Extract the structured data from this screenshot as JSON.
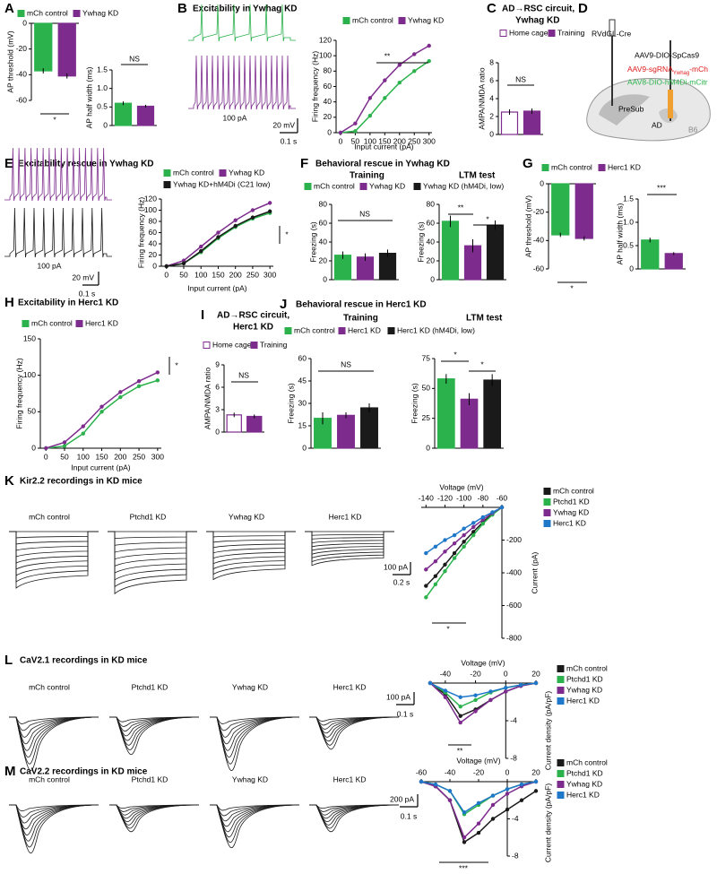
{
  "chart_data": [
    {
      "type": "bar",
      "panel": "A",
      "ylabel": "AP threshold (mV)",
      "series": [
        {
          "name": "mCh control",
          "color": "#2bb24c",
          "values": [
            -37
          ],
          "errors": [
            2
          ]
        },
        {
          "name": "Ywhag KD",
          "color": "#7d2c8e",
          "values": [
            -41
          ],
          "errors": [
            2
          ]
        }
      ],
      "ylim": [
        -60,
        0
      ],
      "yticks": [
        -60,
        -40,
        -20,
        0
      ],
      "annotations": [
        "*"
      ]
    },
    {
      "type": "bar",
      "ylabel": "AP half width (ms)",
      "series": [
        {
          "color": "#2bb24c",
          "values": [
            0.6
          ],
          "errors": [
            0.05
          ]
        },
        {
          "color": "#7d2c8e",
          "values": [
            0.52
          ],
          "errors": [
            0.04
          ]
        }
      ],
      "ylim": [
        0,
        1.5
      ],
      "yticks": [
        0,
        0.5,
        {
          "value": 1,
          "label": "1.0"
        },
        1.5
      ],
      "annotations": [
        "NS"
      ]
    },
    {
      "type": "line",
      "panel": "B",
      "title": "Excitability in Ywhag KD",
      "xlabel": "Input current (pA)",
      "ylabel": "Firing frequency (Hz)",
      "x": [
        0,
        50,
        100,
        150,
        200,
        250,
        300
      ],
      "series": [
        {
          "name": "mCh control",
          "color": "#2bb24c",
          "values": [
            0,
            2,
            22,
            45,
            65,
            80,
            93
          ]
        },
        {
          "name": "Ywhag KD",
          "color": "#7d2c8e",
          "values": [
            0,
            12,
            45,
            68,
            88,
            102,
            113
          ]
        }
      ],
      "xlim": [
        -15,
        310
      ],
      "xticks": [
        0,
        50,
        100,
        150,
        200,
        250,
        300
      ],
      "ylim": [
        0,
        120
      ],
      "yticks": [
        0,
        20,
        40,
        60,
        80,
        100,
        120
      ],
      "annotations": [
        "**"
      ]
    },
    {
      "type": "bar",
      "panel": "C",
      "title": "AD→RSC circuit,",
      "subtitle": "Ywhag KD",
      "ylabel": "AMPA/NMDA ratio",
      "series": [
        {
          "name": "Home cage",
          "color": "#7d2c8e",
          "hollow": true,
          "values": [
            2.5
          ],
          "errors": [
            0.3
          ]
        },
        {
          "name": "Training",
          "color": "#7d2c8e",
          "values": [
            2.6
          ],
          "errors": [
            0.3
          ]
        }
      ],
      "ylim": [
        0,
        8
      ],
      "yticks": [
        0,
        2,
        4,
        6,
        8
      ],
      "annotations": [
        "NS"
      ]
    },
    {
      "type": "line",
      "panel": "E",
      "title": "Excitability rescue in Ywhag KD",
      "xlabel": "Input current (pA)",
      "ylabel": "Firing frequency (Hz)",
      "x": [
        0,
        50,
        100,
        150,
        200,
        250,
        300
      ],
      "series": [
        {
          "name": "mCh control",
          "color": "#2bb24c",
          "values": [
            0,
            5,
            25,
            50,
            70,
            85,
            95
          ]
        },
        {
          "name": "Ywhag KD",
          "color": "#7d2c8e",
          "values": [
            0,
            10,
            35,
            60,
            82,
            100,
            113
          ]
        },
        {
          "name": "Ywhag KD+hM4Di (C21 low)",
          "color": "#1a1a1a",
          "values": [
            0,
            5,
            27,
            52,
            72,
            87,
            98
          ]
        }
      ],
      "xlim": [
        -15,
        310
      ],
      "xticks": [
        0,
        50,
        100,
        150,
        200,
        250,
        300
      ],
      "ylim": [
        0,
        120
      ],
      "yticks": [
        0,
        20,
        40,
        60,
        80,
        100,
        120
      ],
      "annotations": [
        "*"
      ]
    },
    {
      "type": "bar",
      "panel": "F",
      "title": "Behavioral rescue in Ywhag KD",
      "subtitle": "Training",
      "ylabel": "Freezing (s)",
      "series": [
        {
          "name": "mCh control",
          "color": "#2bb24c",
          "values": [
            26
          ],
          "errors": [
            4
          ]
        },
        {
          "name": "Ywhag KD",
          "color": "#7d2c8e",
          "values": [
            24
          ],
          "errors": [
            4
          ]
        },
        {
          "name": "Ywhag KD (hM4Di, low)",
          "color": "#1a1a1a",
          "values": [
            28
          ],
          "errors": [
            4
          ]
        }
      ],
      "ylim": [
        0,
        80
      ],
      "yticks": [
        0,
        20,
        40,
        60,
        80
      ],
      "annotations": [
        "NS"
      ]
    },
    {
      "type": "bar",
      "subtitle": "LTM test",
      "ylabel": "Freezing (s)",
      "series": [
        {
          "color": "#2bb24c",
          "values": [
            62
          ],
          "errors": [
            6
          ]
        },
        {
          "color": "#7d2c8e",
          "values": [
            36
          ],
          "errors": [
            7
          ]
        },
        {
          "color": "#1a1a1a",
          "values": [
            58
          ],
          "errors": [
            5
          ]
        }
      ],
      "ylim": [
        0,
        80
      ],
      "yticks": [
        0,
        20,
        40,
        60,
        80
      ],
      "annotations": [
        "**",
        "*"
      ]
    },
    {
      "type": "bar",
      "panel": "G",
      "ylabel": "AP threshold (mV)",
      "series": [
        {
          "name": "mCh control",
          "color": "#2bb24c",
          "values": [
            -36
          ],
          "errors": [
            1.5
          ]
        },
        {
          "name": "Herc1 KD",
          "color": "#7d2c8e",
          "values": [
            -38.5
          ],
          "errors": [
            1.5
          ]
        }
      ],
      "ylim": [
        -60,
        0
      ],
      "yticks": [
        -60,
        -40,
        -20,
        0
      ],
      "annotations": [
        "*"
      ]
    },
    {
      "type": "bar",
      "ylabel": "AP half width (ms)",
      "series": [
        {
          "color": "#2bb24c",
          "values": [
            0.62
          ],
          "errors": [
            0.05
          ]
        },
        {
          "color": "#7d2c8e",
          "values": [
            0.33
          ],
          "errors": [
            0.03
          ]
        }
      ],
      "ylim": [
        0,
        1.5
      ],
      "yticks": [
        0,
        0.5,
        {
          "value": 1,
          "label": "1.0"
        },
        1.5
      ],
      "annotations": [
        "***"
      ]
    },
    {
      "type": "line",
      "panel": "H",
      "title": "Excitability in Herc1 KD",
      "xlabel": "Input current (pA)",
      "ylabel": "Firing frequency (Hz)",
      "x": [
        0,
        50,
        100,
        150,
        200,
        250,
        300
      ],
      "series": [
        {
          "name": "mCh control",
          "color": "#2bb24c",
          "values": [
            0,
            3,
            20,
            50,
            70,
            85,
            93
          ]
        },
        {
          "name": "Herc1 KD",
          "color": "#7d2c8e",
          "values": [
            0,
            8,
            30,
            57,
            77,
            92,
            104
          ]
        }
      ],
      "xlim": [
        -15,
        310
      ],
      "xticks": [
        0,
        50,
        100,
        150,
        200,
        250,
        300
      ],
      "ylim": [
        0,
        150
      ],
      "yticks": [
        0,
        50,
        100,
        150
      ],
      "annotations": [
        "*"
      ]
    },
    {
      "type": "bar",
      "panel": "I",
      "title": "AD→RSC circuit,",
      "subtitle": "Herc1 KD",
      "ylabel": "AMPA/NMDA ratio",
      "series": [
        {
          "name": "Home cage",
          "color": "#7d2c8e",
          "hollow": true,
          "values": [
            2.3
          ],
          "errors": [
            0.3
          ]
        },
        {
          "name": "Training",
          "color": "#7d2c8e",
          "values": [
            2.1
          ],
          "errors": [
            0.25
          ]
        }
      ],
      "ylim": [
        0,
        9
      ],
      "yticks": [
        0,
        3,
        6,
        9
      ],
      "annotations": [
        "NS"
      ]
    },
    {
      "type": "bar",
      "panel": "J",
      "title": "Behavioral rescue in Herc1 KD",
      "subtitle": "Training",
      "ylabel": "Freezing (s)",
      "series": [
        {
          "name": "mCh control",
          "color": "#2bb24c",
          "values": [
            20
          ],
          "errors": [
            4
          ]
        },
        {
          "name": "Herc1 KD",
          "color": "#7d2c8e",
          "values": [
            22
          ],
          "errors": [
            2
          ]
        },
        {
          "name": "Herc1 KD (hM4Di, low)",
          "color": "#1a1a1a",
          "values": [
            27
          ],
          "errors": [
            3
          ]
        }
      ],
      "ylim": [
        0,
        60
      ],
      "yticks": [
        0,
        15,
        30,
        45,
        60
      ],
      "annotations": [
        "NS"
      ]
    },
    {
      "type": "bar",
      "subtitle": "LTM test",
      "ylabel": "Freezing (s)",
      "series": [
        {
          "color": "#2bb24c",
          "values": [
            58
          ],
          "errors": [
            4
          ]
        },
        {
          "color": "#7d2c8e",
          "values": [
            41
          ],
          "errors": [
            5
          ]
        },
        {
          "color": "#1a1a1a",
          "values": [
            57
          ],
          "errors": [
            5
          ]
        }
      ],
      "ylim": [
        0,
        75
      ],
      "yticks": [
        0,
        25,
        50,
        75
      ],
      "annotations": [
        "*",
        "*"
      ]
    },
    {
      "type": "line",
      "x_axis": "top",
      "panel": "K",
      "title": "Kir2.2 recordings in KD mice",
      "xlabel": "Voltage (mV)",
      "ylabel": "Current (pA)",
      "x": [
        -140,
        -130,
        -120,
        -110,
        -100,
        -90,
        -80,
        -70,
        -60
      ],
      "series": [
        {
          "name": "mCh control",
          "color": "#1a1a1a",
          "values": [
            -480,
            -420,
            -350,
            -280,
            -210,
            -150,
            -90,
            -40,
            0
          ]
        },
        {
          "name": "Ptchd1 KD",
          "color": "#2bb24c",
          "values": [
            -550,
            -470,
            -390,
            -310,
            -240,
            -170,
            -100,
            -45,
            0
          ]
        },
        {
          "name": "Ywhag KD",
          "color": "#7d2c8e",
          "values": [
            -380,
            -330,
            -270,
            -220,
            -170,
            -120,
            -75,
            -35,
            0
          ]
        },
        {
          "name": "Herc1 KD",
          "color": "#1f77c9",
          "values": [
            -280,
            -240,
            -200,
            -170,
            -130,
            -95,
            -60,
            -30,
            0
          ]
        }
      ],
      "xlim": [
        -145,
        -60
      ],
      "xticks": [
        -140,
        -120,
        -100,
        -80,
        -60
      ],
      "ylim": [
        -800,
        0
      ],
      "yticks": [
        -800,
        -600,
        -400,
        -200
      ],
      "annotations": [
        "*"
      ]
    },
    {
      "type": "line",
      "x_axis": "top",
      "panel": "L",
      "title": "CaV2.1 recordings in KD mice",
      "xlabel": "Voltage (mV)",
      "ylabel": "Current density (pA/pF)",
      "x": [
        -50,
        -40,
        -30,
        -20,
        -10,
        0,
        10,
        20
      ],
      "series": [
        {
          "name": "mCh control",
          "color": "#1a1a1a",
          "values": [
            0,
            -1.2,
            -3.5,
            -2.8,
            -1.8,
            -0.9,
            -0.3,
            0
          ]
        },
        {
          "name": "Ptchd1 KD",
          "color": "#2bb24c",
          "values": [
            0,
            -1,
            -2.5,
            -1.8,
            -1,
            -0.5,
            -0.2,
            0
          ]
        },
        {
          "name": "Ywhag KD",
          "color": "#7d2c8e",
          "values": [
            0,
            -1.5,
            -4.2,
            -3,
            -1.8,
            -0.9,
            -0.3,
            0
          ]
        },
        {
          "name": "Herc1 KD",
          "color": "#1f77c9",
          "values": [
            0,
            -0.8,
            -1.5,
            -1.3,
            -0.9,
            -0.5,
            -0.2,
            0
          ]
        }
      ],
      "xlim": [
        -50,
        20
      ],
      "xticks": [
        -40,
        -20,
        0,
        20
      ],
      "ylim": [
        -8,
        0
      ],
      "yticks": [
        -8,
        -4
      ],
      "annotations": [
        "**"
      ]
    },
    {
      "type": "line",
      "x_axis": "top",
      "panel": "M",
      "title": "CaV2.2 recordings in KD mice",
      "xlabel": "Voltage (mV)",
      "ylabel": "Current density (pA/pF)",
      "x": [
        -60,
        -50,
        -40,
        -30,
        -20,
        -10,
        0,
        10,
        20
      ],
      "series": [
        {
          "name": "mCh control",
          "color": "#1a1a1a",
          "values": [
            0,
            -0.5,
            -2,
            -6.5,
            -5.5,
            -4,
            -3,
            -2,
            -1
          ]
        },
        {
          "name": "Ptchd1 KD",
          "color": "#2bb24c",
          "values": [
            0,
            -0.3,
            -1,
            -3.5,
            -2.5,
            -1.5,
            -0.8,
            -0.3,
            0
          ]
        },
        {
          "name": "Ywhag KD",
          "color": "#7d2c8e",
          "values": [
            0,
            -0.5,
            -2,
            -6,
            -4.5,
            -2.5,
            -1.3,
            -0.5,
            0
          ]
        },
        {
          "name": "Herc1 KD",
          "color": "#1f77c9",
          "values": [
            0,
            -0.3,
            -1,
            -3.3,
            -2.3,
            -1.5,
            -0.8,
            -0.3,
            0
          ]
        }
      ],
      "xlim": [
        -60,
        20
      ],
      "xticks": [
        -60,
        -40,
        -20,
        0,
        20
      ],
      "ylim": [
        -8,
        0
      ],
      "yticks": [
        -8,
        -4
      ],
      "annotations": [
        "***"
      ]
    }
  ],
  "figure": {
    "traces": [
      {
        "labels": [
          "100 pA"
        ],
        "scale": [
          "20 mV",
          "0.1 s"
        ]
      },
      {
        "labels": [
          "100 pA"
        ],
        "scale": [
          "20 mV",
          "0.1 s"
        ]
      },
      {
        "labels": [
          "mCh control",
          "Ptchd1 KD",
          "Ywhag KD",
          "Herc1 KD"
        ],
        "scale": [
          "100 pA",
          "0.2 s"
        ]
      },
      {
        "labels": [
          "mCh control",
          "Ptchd1 KD",
          "Ywhag KD",
          "Herc1 KD"
        ],
        "scale": [
          "100 pA",
          "0.1 s"
        ]
      },
      {
        "labels": [
          "mCh control",
          "Ptchd1 KD",
          "Ywhag KD",
          "Herc1 KD"
        ],
        "scale": [
          "200 pA",
          "0.1 s"
        ]
      }
    ],
    "diagram": {
      "panel": "D",
      "cre": "RVdGL-Cre",
      "cas9": "AAV9-DIO-SpCas9",
      "sgrna": [
        "AAV9-sgRNA",
        "Ywhag",
        "-mCh"
      ],
      "hm4di": "AAV8-DIO-hM4Di-mCitr",
      "regions": [
        "PreSub",
        "AD",
        "B6"
      ]
    }
  }
}
